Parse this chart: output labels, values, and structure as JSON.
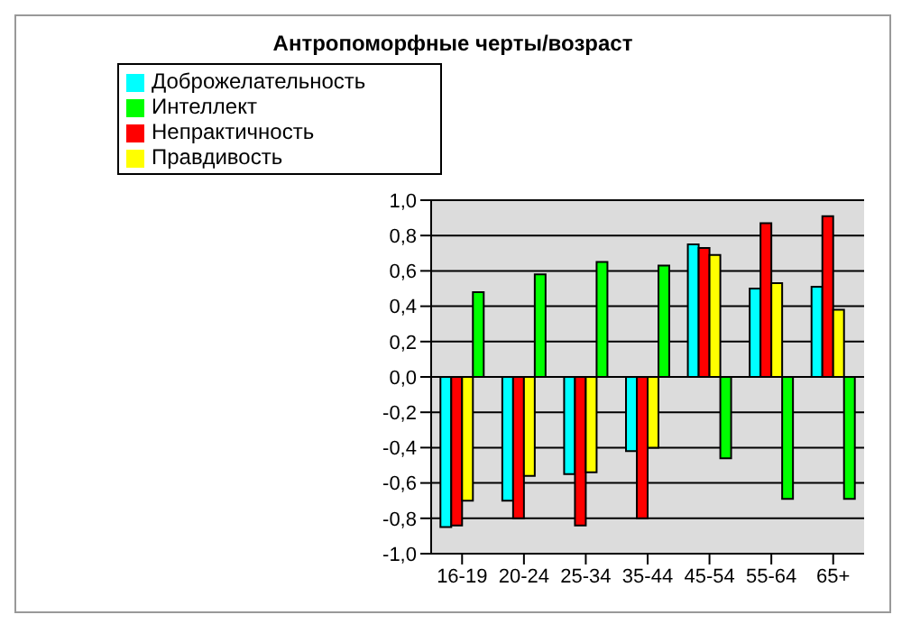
{
  "chart_data": {
    "type": "bar",
    "title": "Антропоморфные черты/возраст",
    "categories": [
      "16-19",
      "20-24",
      "25-34",
      "35-44",
      "45-54",
      "55-64",
      "65+"
    ],
    "series": [
      {
        "name": "Доброжелательность",
        "color": "#00ffff",
        "values": [
          -0.85,
          -0.7,
          -0.55,
          -0.42,
          0.75,
          0.5,
          0.51
        ]
      },
      {
        "name": "Непрактичность",
        "color": "#ff0000",
        "values": [
          -0.84,
          -0.8,
          -0.84,
          -0.8,
          0.73,
          0.87,
          0.91
        ]
      },
      {
        "name": "Правдивость",
        "color": "#ffff00",
        "values": [
          -0.7,
          -0.56,
          -0.54,
          -0.4,
          0.69,
          0.53,
          0.38
        ]
      },
      {
        "name": "Интеллект",
        "color": "#00ff00",
        "values": [
          0.48,
          0.58,
          0.65,
          0.63,
          -0.46,
          -0.69,
          -0.69
        ]
      }
    ],
    "ylim": [
      -1,
      1
    ],
    "yticks": [
      {
        "value": -1,
        "label": "-1,0"
      },
      {
        "value": -0.8,
        "label": "-0,8"
      },
      {
        "value": -0.6,
        "label": "-0,6"
      },
      {
        "value": -0.4,
        "label": "-0,4"
      },
      {
        "value": -0.2,
        "label": "-0,2"
      },
      {
        "value": 0,
        "label": "0,0"
      },
      {
        "value": 0.2,
        "label": "0,2"
      },
      {
        "value": 0.4,
        "label": "0,4"
      },
      {
        "value": 0.6,
        "label": "0,6"
      },
      {
        "value": 0.8,
        "label": "0,8"
      },
      {
        "value": 1,
        "label": "1,0"
      }
    ],
    "grid": "y",
    "legend": "top left"
  }
}
